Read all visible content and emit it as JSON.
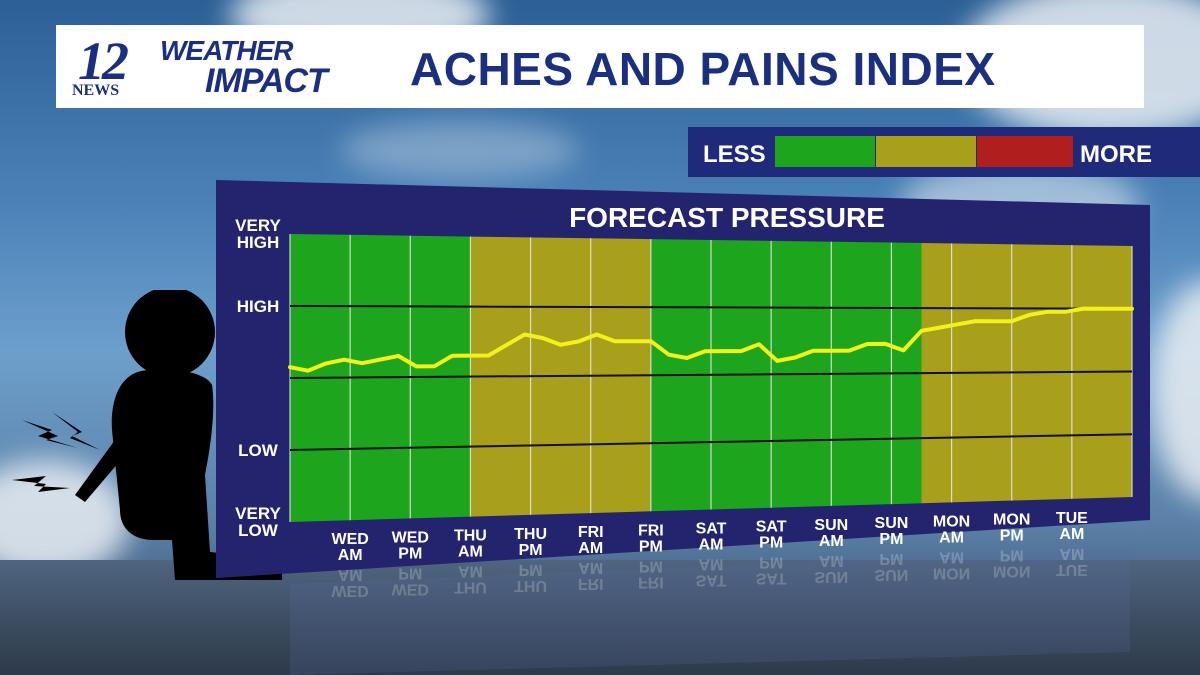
{
  "header": {
    "logo_number": "12",
    "logo_news": "NEWS",
    "logo_weather": "WEATHER",
    "logo_impact": "IMPACT",
    "title": "ACHES AND PAINS INDEX"
  },
  "legend": {
    "less_label": "LESS",
    "more_label": "MORE",
    "colors": [
      "#1ea51e",
      "#a89f1b",
      "#b01e1e"
    ]
  },
  "chart_data": {
    "type": "line",
    "title": "FORECAST PRESSURE",
    "y_tick_labels": [
      "VERY HIGH",
      "HIGH",
      "LOW",
      "VERY LOW"
    ],
    "y_ticks": [
      4,
      3,
      1,
      0
    ],
    "ylim": [
      0,
      4
    ],
    "xlim": [
      0,
      14
    ],
    "x_labels": [
      "WED AM",
      "WED PM",
      "THU AM",
      "THU PM",
      "FRI AM",
      "FRI PM",
      "SAT AM",
      "SAT PM",
      "SUN AM",
      "SUN PM",
      "MON AM",
      "MON PM",
      "TUE AM"
    ],
    "x_label_positions": [
      1,
      2,
      3,
      4,
      5,
      6,
      7,
      8,
      9,
      10,
      11,
      12,
      13
    ],
    "reference_lines": [
      3,
      2,
      1
    ],
    "bands": [
      {
        "from": 0,
        "to": 3,
        "level": "less",
        "color": "#1ea51e"
      },
      {
        "from": 3,
        "to": 6,
        "level": "moderate",
        "color": "#a89f1b"
      },
      {
        "from": 6,
        "to": 10.5,
        "level": "less",
        "color": "#1ea51e"
      },
      {
        "from": 10.5,
        "to": 14,
        "level": "moderate",
        "color": "#a89f1b"
      }
    ],
    "series": [
      {
        "color": "#f2f21a",
        "x": [
          0,
          0.3,
          0.6,
          0.9,
          1.2,
          1.5,
          1.8,
          2.1,
          2.4,
          2.7,
          3.0,
          3.3,
          3.6,
          3.9,
          4.2,
          4.5,
          4.8,
          5.1,
          5.4,
          5.7,
          6.0,
          6.3,
          6.6,
          6.9,
          7.2,
          7.5,
          7.8,
          8.1,
          8.4,
          8.7,
          9.0,
          9.3,
          9.6,
          9.9,
          10.2,
          10.5,
          10.8,
          11.1,
          11.4,
          11.7,
          12.0,
          12.3,
          12.6,
          12.9,
          13.2,
          13.5,
          14.0
        ],
        "y": [
          2.15,
          2.1,
          2.2,
          2.25,
          2.2,
          2.25,
          2.3,
          2.15,
          2.15,
          2.3,
          2.3,
          2.3,
          2.45,
          2.6,
          2.55,
          2.45,
          2.5,
          2.6,
          2.5,
          2.5,
          2.5,
          2.3,
          2.25,
          2.35,
          2.35,
          2.35,
          2.45,
          2.2,
          2.25,
          2.35,
          2.35,
          2.35,
          2.45,
          2.45,
          2.35,
          2.65,
          2.7,
          2.75,
          2.8,
          2.8,
          2.8,
          2.9,
          2.95,
          2.95,
          3.0,
          3.0,
          3.0
        ]
      }
    ]
  }
}
